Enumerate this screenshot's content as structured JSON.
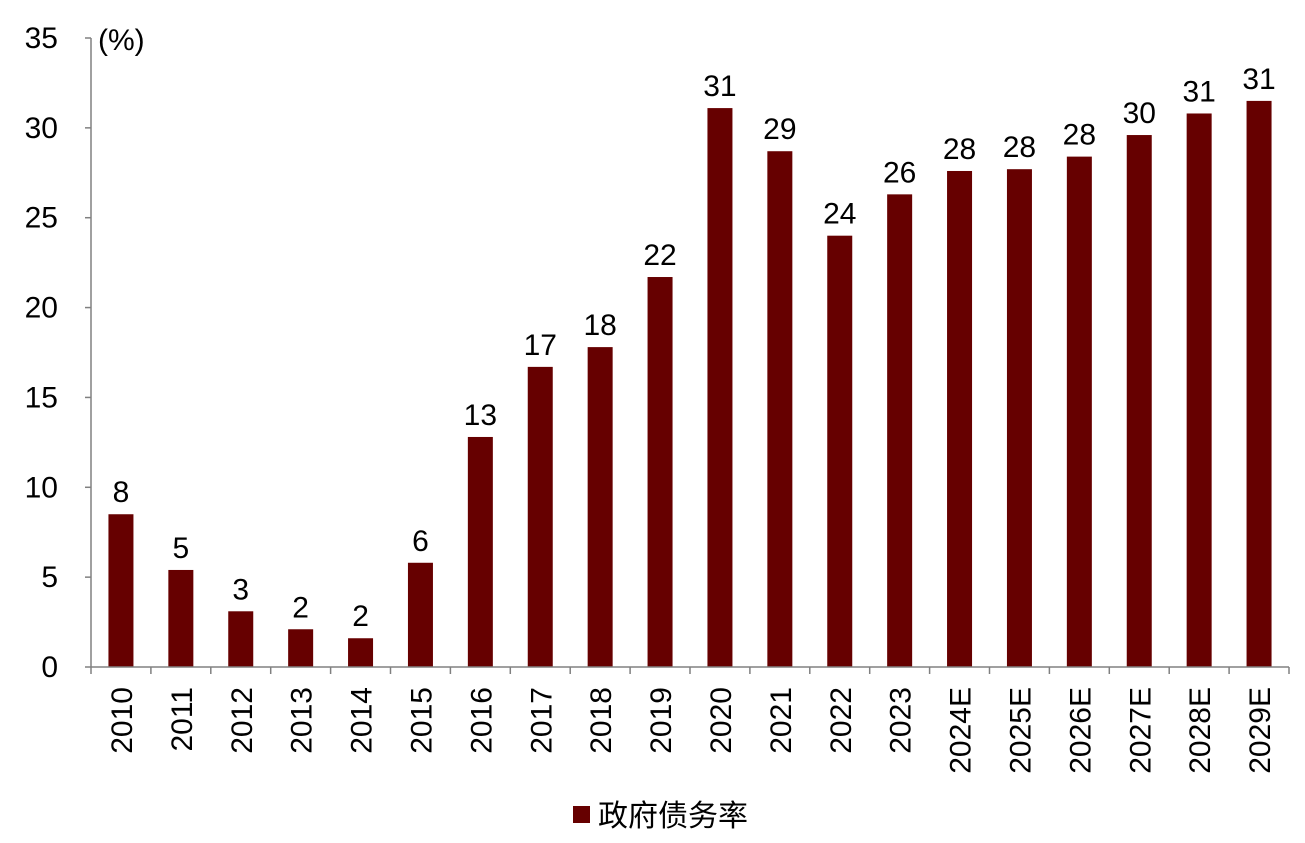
{
  "chart_data": {
    "type": "bar",
    "unit_label": "(%)",
    "categories": [
      "2010",
      "2011",
      "2012",
      "2013",
      "2014",
      "2015",
      "2016",
      "2017",
      "2018",
      "2019",
      "2020",
      "2021",
      "2022",
      "2023",
      "2024E",
      "2025E",
      "2026E",
      "2027E",
      "2028E",
      "2029E"
    ],
    "series": [
      {
        "name": "政府债务率",
        "color": "#660000",
        "values": [
          8.5,
          5.4,
          3.1,
          2.1,
          1.6,
          5.8,
          12.8,
          16.7,
          17.8,
          21.7,
          31.1,
          28.7,
          24.0,
          26.3,
          27.6,
          27.7,
          28.4,
          29.6,
          30.8,
          31.5
        ],
        "data_labels": [
          "8",
          "5",
          "3",
          "2",
          "2",
          "6",
          "13",
          "17",
          "18",
          "22",
          "31",
          "29",
          "24",
          "26",
          "28",
          "28",
          "28",
          "30",
          "31",
          "31"
        ]
      }
    ],
    "ylim": [
      0,
      35
    ],
    "yticks": [
      "0",
      "5",
      "10",
      "15",
      "20",
      "25",
      "30",
      "35"
    ],
    "ytick_values": [
      0,
      5,
      10,
      15,
      20,
      25,
      30,
      35
    ],
    "grid": false,
    "legend_position": "bottom-center",
    "xlabel_rotation": "vertical"
  }
}
